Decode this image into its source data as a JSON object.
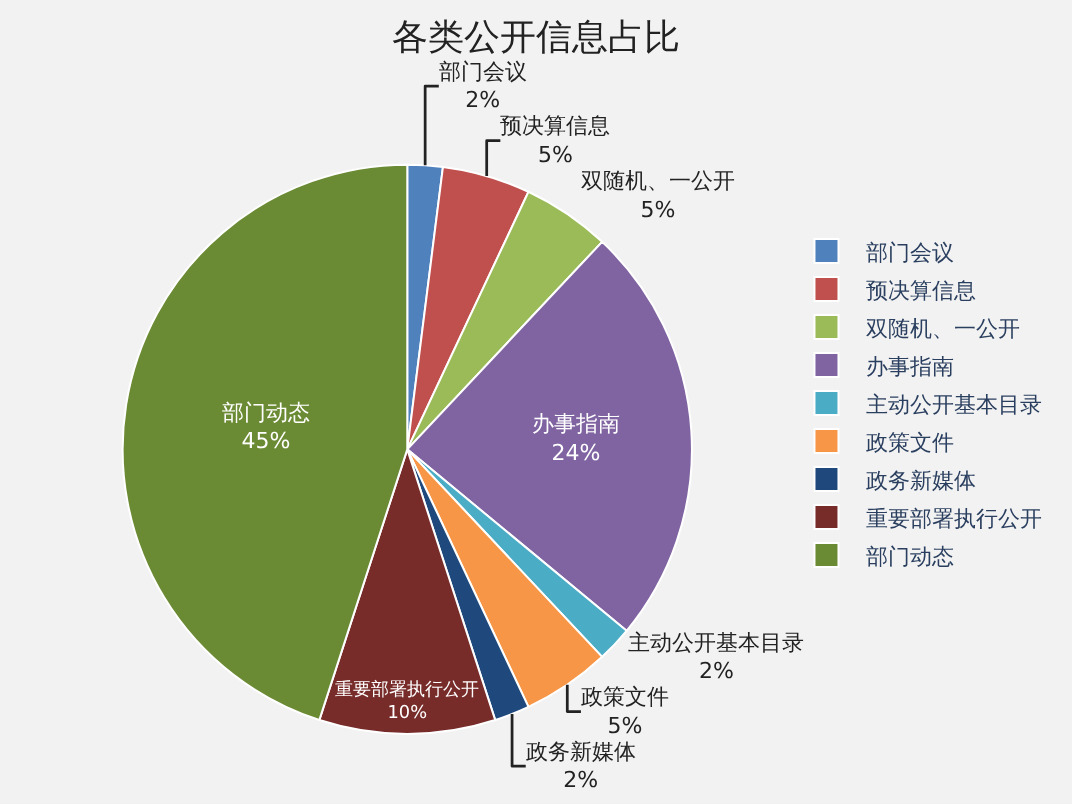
{
  "chart_data": {
    "type": "pie",
    "title": "各类公开信息占比",
    "categories": [
      "部门会议",
      "预决算信息",
      "双随机、一公开",
      "办事指南",
      "主动公开基本目录",
      "政策文件",
      "政务新媒体",
      "重要部署执行公开",
      "部门动态"
    ],
    "values": [
      2,
      5,
      5,
      24,
      2,
      5,
      2,
      10,
      45
    ],
    "value_labels": [
      "2%",
      "5%",
      "5%",
      "24%",
      "2%",
      "5%",
      "2%",
      "10%",
      "45%"
    ],
    "colors": [
      "#4f81bd",
      "#c0504d",
      "#9bbb59",
      "#8064a2",
      "#4bacc6",
      "#f79646",
      "#1f497d",
      "#772c2a",
      "#6b8a34"
    ],
    "legend": "right"
  }
}
